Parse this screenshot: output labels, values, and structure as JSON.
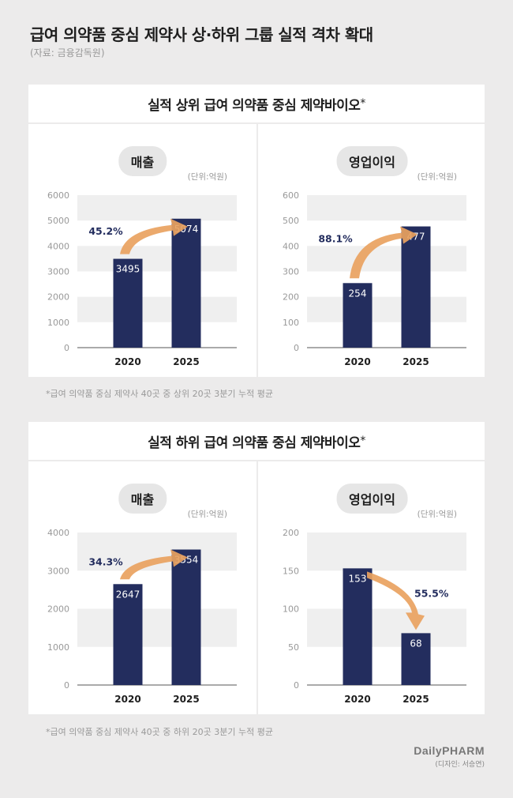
{
  "title": "급여 의약품 중심 제약사 상·하위 그룹 실적 격차 확대",
  "source": "(자료: 금융감독원)",
  "unit_label": "(단위:억원)",
  "brand": {
    "logo": "DailyPHARM",
    "designer": "(디자인: 서승연)"
  },
  "colors": {
    "bar": "#232d5e",
    "band": "#efefef",
    "arrow": "#e9a25f",
    "pct_text": "#232d5e"
  },
  "sections": [
    {
      "header": "실적 상위 급여 의약품 중심 제약바이오",
      "header_mark": "*",
      "footnote": "*급여 의약품 중심 제약사 40곳 중 상위 20곳 3분기 누적 평균",
      "panels": [
        {
          "label": "매출",
          "change": "45.2%"
        },
        {
          "label": "영업이익",
          "change": "88.1%"
        }
      ]
    },
    {
      "header": "실적 하위 급여 의약품 중심 제약바이오",
      "header_mark": "*",
      "footnote": "*급여 의약품 중심 제약사 40곳 중 하위 20곳  3분기 누적 평균",
      "panels": [
        {
          "label": "매출",
          "change": "34.3%"
        },
        {
          "label": "영업이익",
          "change": "55.5%"
        }
      ]
    }
  ],
  "chart_data": [
    {
      "type": "bar",
      "title": "매출",
      "categories": [
        "2020",
        "2025"
      ],
      "values": [
        3495,
        5074
      ],
      "ylim": [
        0,
        6000
      ],
      "yticks": [
        0,
        1000,
        2000,
        3000,
        4000,
        5000,
        6000
      ],
      "change_label": "45.2%",
      "trend": "up"
    },
    {
      "type": "bar",
      "title": "영업이익",
      "categories": [
        "2020",
        "2025"
      ],
      "values": [
        254,
        477
      ],
      "ylim": [
        0,
        600
      ],
      "yticks": [
        0,
        100,
        200,
        300,
        400,
        500,
        600
      ],
      "change_label": "88.1%",
      "trend": "up"
    },
    {
      "type": "bar",
      "title": "매출",
      "categories": [
        "2020",
        "2025"
      ],
      "values": [
        2647,
        3554
      ],
      "ylim": [
        0,
        4000
      ],
      "yticks": [
        0,
        1000,
        2000,
        3000,
        4000
      ],
      "change_label": "34.3%",
      "trend": "up"
    },
    {
      "type": "bar",
      "title": "영업이익",
      "categories": [
        "2020",
        "2025"
      ],
      "values": [
        153,
        68
      ],
      "ylim": [
        0,
        200
      ],
      "yticks": [
        0,
        50,
        100,
        150,
        200
      ],
      "change_label": "55.5%",
      "trend": "down"
    }
  ]
}
